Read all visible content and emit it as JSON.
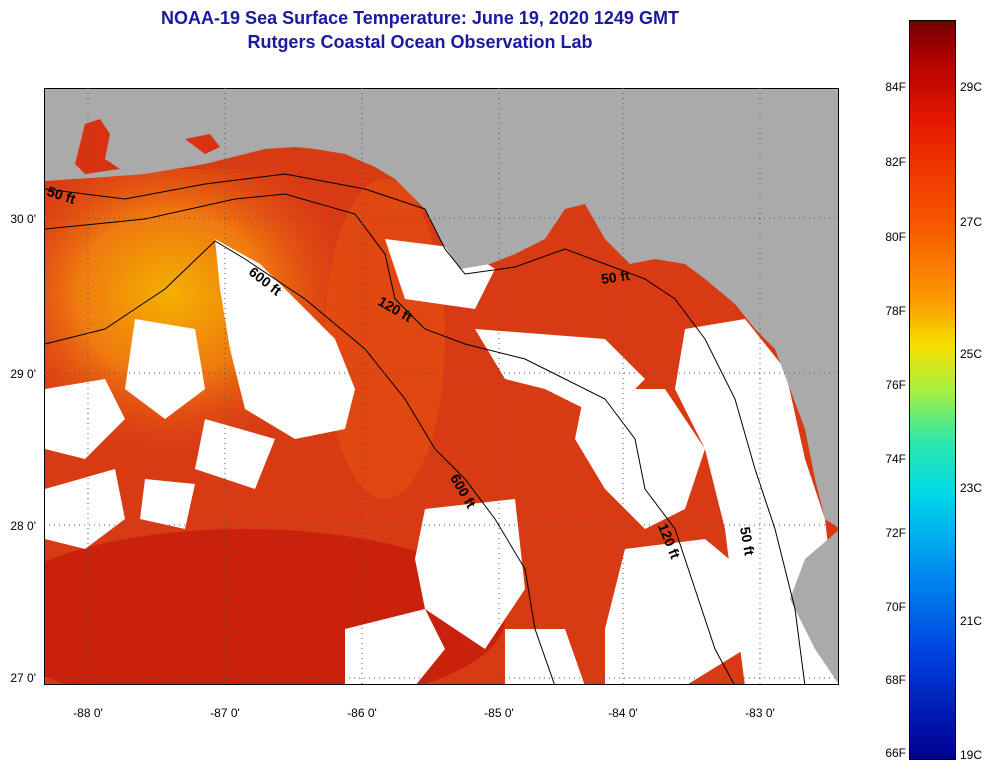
{
  "title": {
    "line1": "NOAA-19 Sea Surface Temperature:  June 19, 2020 1249 GMT",
    "line2": "Rutgers Coastal Ocean Observation Lab"
  },
  "axes": {
    "latitude_labels": [
      "30 0'",
      "29 0'",
      "28 0'",
      "27 0'"
    ],
    "longitude_labels": [
      "-88 0'",
      "-87 0'",
      "-86 0'",
      "-85 0'",
      "-84 0'",
      "-83 0'"
    ]
  },
  "contours": [
    "50 ft",
    "600 ft",
    "120 ft",
    "50 ft",
    "600 ft",
    "120 ft",
    "50 ft"
  ],
  "colorbar": {
    "fahrenheit": [
      "84F",
      "82F",
      "80F",
      "78F",
      "76F",
      "74F",
      "72F",
      "70F",
      "68F",
      "66F"
    ],
    "celsius": [
      "29C",
      "27C",
      "25C",
      "23C",
      "21C",
      "19C"
    ]
  },
  "colors": {
    "land": "#aaaaaa",
    "cloud": "#ffffff",
    "ocean_warm": "#d83212",
    "title": "#1a1aa0"
  }
}
